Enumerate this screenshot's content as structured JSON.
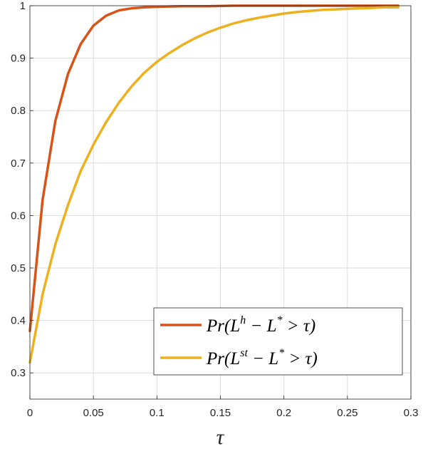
{
  "chart_data": {
    "type": "line",
    "title": "",
    "xlabel": "τ",
    "ylabel": "",
    "xlim": [
      0,
      0.3
    ],
    "ylim": [
      0.25,
      1
    ],
    "xticks": [
      0,
      0.05,
      0.1,
      0.15,
      0.2,
      0.25,
      0.3
    ],
    "xtick_labels": [
      "0",
      "0.05",
      "0.1",
      "0.15",
      "0.2",
      "0.25",
      "0.3"
    ],
    "yticks": [
      0.3,
      0.4,
      0.5,
      0.6,
      0.7,
      0.8,
      0.9,
      1
    ],
    "ytick_labels": [
      "0.3",
      "0.4",
      "0.5",
      "0.6",
      "0.7",
      "0.8",
      "0.9",
      "1"
    ],
    "grid": true,
    "legend_position": "bottom-right",
    "series": [
      {
        "name": "Pr(L^h − L^* > τ)",
        "legend_parts": [
          "Pr(L",
          "h",
          " − L",
          "*",
          " > τ)"
        ],
        "color": "#D95319",
        "x": [
          0,
          0.01,
          0.02,
          0.03,
          0.04,
          0.05,
          0.06,
          0.07,
          0.08,
          0.09,
          0.1,
          0.12,
          0.14,
          0.16,
          0.18,
          0.2,
          0.22,
          0.24,
          0.26,
          0.28,
          0.29
        ],
        "y": [
          0.38,
          0.63,
          0.78,
          0.87,
          0.927,
          0.962,
          0.981,
          0.991,
          0.995,
          0.997,
          0.998,
          0.999,
          0.999,
          1.0,
          1.0,
          1.0,
          1.0,
          1.0,
          1.0,
          1.0,
          1.0
        ]
      },
      {
        "name": "Pr(L^st − L^* > τ)",
        "legend_parts": [
          "Pr(L",
          "st",
          " − L",
          "*",
          " > τ)"
        ],
        "color": "#EDB120",
        "x": [
          0,
          0.01,
          0.02,
          0.03,
          0.04,
          0.05,
          0.06,
          0.07,
          0.08,
          0.09,
          0.1,
          0.11,
          0.12,
          0.13,
          0.14,
          0.15,
          0.16,
          0.17,
          0.18,
          0.19,
          0.2,
          0.21,
          0.22,
          0.23,
          0.24,
          0.25,
          0.26,
          0.27,
          0.28,
          0.29
        ],
        "y": [
          0.32,
          0.45,
          0.545,
          0.62,
          0.685,
          0.735,
          0.778,
          0.815,
          0.846,
          0.872,
          0.893,
          0.91,
          0.925,
          0.938,
          0.949,
          0.958,
          0.966,
          0.972,
          0.977,
          0.981,
          0.985,
          0.988,
          0.99,
          0.992,
          0.993,
          0.994,
          0.995,
          0.996,
          0.997,
          0.997
        ]
      }
    ]
  }
}
